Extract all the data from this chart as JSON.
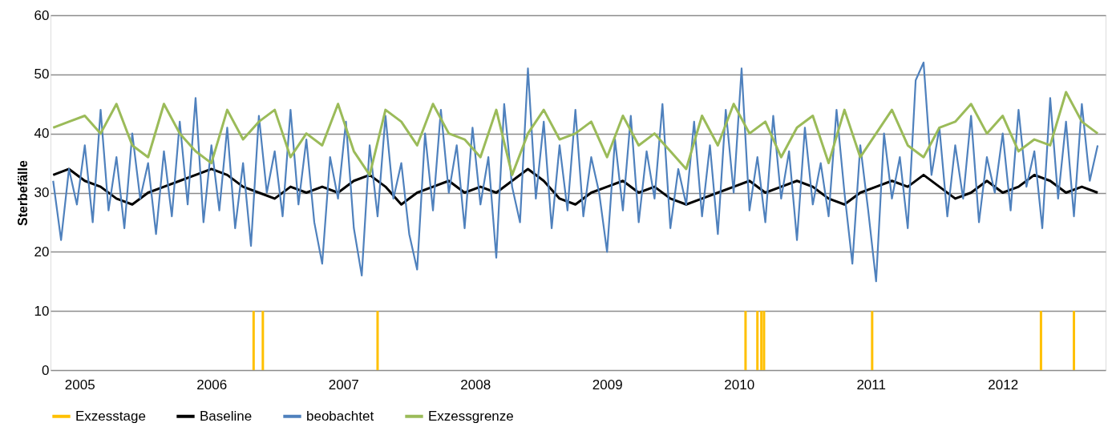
{
  "chart_data": {
    "type": "line",
    "ylabel": "Sterbefälle",
    "xlim": [
      2004.78,
      2012.78
    ],
    "xticks": [
      2005,
      2006,
      2007,
      2008,
      2009,
      2010,
      2011,
      2012
    ],
    "ylim": [
      0,
      60
    ],
    "yticks": [
      0,
      10,
      20,
      30,
      40,
      50,
      60
    ],
    "grid": "y",
    "legend": "bottom",
    "series": [
      {
        "name": "Exzesstage",
        "type": "bar",
        "color": "#ffc000",
        "x": [
          2006.32,
          2006.39,
          2007.26,
          2010.05,
          2010.14,
          2010.17,
          2010.19,
          2011.01,
          2012.29,
          2012.54
        ],
        "values": [
          10,
          10,
          10,
          10,
          10,
          10,
          10,
          10,
          10,
          10
        ]
      },
      {
        "name": "Baseline",
        "color": "#000000",
        "x": [
          2004.8,
          2004.92,
          2005.04,
          2005.16,
          2005.28,
          2005.4,
          2005.52,
          2005.64,
          2005.76,
          2005.88,
          2006.0,
          2006.12,
          2006.24,
          2006.36,
          2006.48,
          2006.6,
          2006.72,
          2006.84,
          2006.96,
          2007.08,
          2007.2,
          2007.32,
          2007.44,
          2007.56,
          2007.68,
          2007.8,
          2007.92,
          2008.04,
          2008.16,
          2008.28,
          2008.4,
          2008.52,
          2008.64,
          2008.76,
          2008.88,
          2009.0,
          2009.12,
          2009.24,
          2009.36,
          2009.48,
          2009.6,
          2009.72,
          2009.84,
          2009.96,
          2010.08,
          2010.2,
          2010.32,
          2010.44,
          2010.56,
          2010.68,
          2010.8,
          2010.92,
          2011.04,
          2011.16,
          2011.28,
          2011.4,
          2011.52,
          2011.64,
          2011.76,
          2011.88,
          2012.0,
          2012.12,
          2012.24,
          2012.36,
          2012.48,
          2012.6,
          2012.72
        ],
        "values": [
          33,
          34,
          32,
          31,
          29,
          28,
          30,
          31,
          32,
          33,
          34,
          33,
          31,
          30,
          29,
          31,
          30,
          31,
          30,
          32,
          33,
          31,
          28,
          30,
          31,
          32,
          30,
          31,
          30,
          32,
          34,
          32,
          29,
          28,
          30,
          31,
          32,
          30,
          31,
          29,
          28,
          29,
          30,
          31,
          32,
          30,
          31,
          32,
          31,
          29,
          28,
          30,
          31,
          32,
          31,
          33,
          31,
          29,
          30,
          32,
          30,
          31,
          33,
          32,
          30,
          31,
          30
        ]
      },
      {
        "name": "beobachtet",
        "color": "#4f81bd",
        "x": [
          2004.8,
          2004.86,
          2004.92,
          2004.98,
          2005.04,
          2005.1,
          2005.16,
          2005.22,
          2005.28,
          2005.34,
          2005.4,
          2005.46,
          2005.52,
          2005.58,
          2005.64,
          2005.7,
          2005.76,
          2005.82,
          2005.88,
          2005.94,
          2006.0,
          2006.06,
          2006.12,
          2006.18,
          2006.24,
          2006.3,
          2006.36,
          2006.42,
          2006.48,
          2006.54,
          2006.6,
          2006.66,
          2006.72,
          2006.78,
          2006.84,
          2006.9,
          2006.96,
          2007.02,
          2007.08,
          2007.14,
          2007.2,
          2007.26,
          2007.32,
          2007.38,
          2007.44,
          2007.5,
          2007.56,
          2007.62,
          2007.68,
          2007.74,
          2007.8,
          2007.86,
          2007.92,
          2007.98,
          2008.04,
          2008.1,
          2008.16,
          2008.22,
          2008.28,
          2008.34,
          2008.4,
          2008.46,
          2008.52,
          2008.58,
          2008.64,
          2008.7,
          2008.76,
          2008.82,
          2008.88,
          2008.94,
          2009.0,
          2009.06,
          2009.12,
          2009.18,
          2009.24,
          2009.3,
          2009.36,
          2009.42,
          2009.48,
          2009.54,
          2009.6,
          2009.66,
          2009.72,
          2009.78,
          2009.84,
          2009.9,
          2009.96,
          2010.02,
          2010.08,
          2010.14,
          2010.2,
          2010.26,
          2010.32,
          2010.38,
          2010.44,
          2010.5,
          2010.56,
          2010.62,
          2010.68,
          2010.74,
          2010.8,
          2010.86,
          2010.92,
          2010.98,
          2011.04,
          2011.1,
          2011.16,
          2011.22,
          2011.28,
          2011.34,
          2011.4,
          2011.46,
          2011.52,
          2011.58,
          2011.64,
          2011.7,
          2011.76,
          2011.82,
          2011.88,
          2011.94,
          2012.0,
          2012.06,
          2012.12,
          2012.18,
          2012.24,
          2012.3,
          2012.36,
          2012.42,
          2012.48,
          2012.54,
          2012.6,
          2012.66,
          2012.72
        ],
        "values": [
          32,
          22,
          34,
          28,
          38,
          25,
          44,
          27,
          36,
          24,
          40,
          29,
          35,
          23,
          37,
          26,
          42,
          28,
          46,
          25,
          38,
          27,
          41,
          24,
          35,
          21,
          43,
          30,
          37,
          26,
          44,
          28,
          39,
          25,
          18,
          36,
          29,
          42,
          24,
          16,
          38,
          26,
          43,
          29,
          35,
          23,
          17,
          40,
          27,
          44,
          30,
          38,
          24,
          41,
          28,
          36,
          19,
          45,
          31,
          25,
          51,
          29,
          42,
          24,
          38,
          27,
          44,
          26,
          36,
          30,
          20,
          39,
          27,
          43,
          25,
          37,
          29,
          45,
          24,
          34,
          28,
          42,
          26,
          38,
          23,
          44,
          30,
          51,
          27,
          36,
          25,
          43,
          29,
          37,
          22,
          41,
          28,
          35,
          26,
          44,
          30,
          18,
          38,
          27,
          15,
          40,
          29,
          36,
          24,
          49,
          52,
          33,
          41,
          26,
          38,
          29,
          43,
          25,
          36,
          30,
          40,
          27,
          44,
          31,
          37,
          24,
          46,
          29,
          42,
          26,
          45,
          32,
          38
        ]
      },
      {
        "name": "Exzessgrenze",
        "color": "#9bbb59",
        "x": [
          2004.8,
          2004.92,
          2005.04,
          2005.16,
          2005.28,
          2005.4,
          2005.52,
          2005.64,
          2005.76,
          2005.88,
          2006.0,
          2006.12,
          2006.24,
          2006.36,
          2006.48,
          2006.6,
          2006.72,
          2006.84,
          2006.96,
          2007.08,
          2007.2,
          2007.32,
          2007.44,
          2007.56,
          2007.68,
          2007.8,
          2007.92,
          2008.04,
          2008.16,
          2008.28,
          2008.4,
          2008.52,
          2008.64,
          2008.76,
          2008.88,
          2009.0,
          2009.12,
          2009.24,
          2009.36,
          2009.48,
          2009.6,
          2009.72,
          2009.84,
          2009.96,
          2010.08,
          2010.2,
          2010.32,
          2010.44,
          2010.56,
          2010.68,
          2010.8,
          2010.92,
          2011.04,
          2011.16,
          2011.28,
          2011.4,
          2011.52,
          2011.64,
          2011.76,
          2011.88,
          2012.0,
          2012.12,
          2012.24,
          2012.36,
          2012.48,
          2012.6,
          2012.72
        ],
        "values": [
          41,
          42,
          43,
          40,
          45,
          38,
          36,
          45,
          40,
          37,
          35,
          44,
          39,
          42,
          44,
          36,
          40,
          38,
          45,
          37,
          33,
          44,
          42,
          38,
          45,
          40,
          39,
          36,
          44,
          33,
          40,
          44,
          39,
          40,
          42,
          36,
          43,
          38,
          40,
          37,
          34,
          43,
          38,
          45,
          40,
          42,
          36,
          41,
          43,
          35,
          44,
          36,
          40,
          44,
          38,
          36,
          41,
          42,
          45,
          40,
          43,
          37,
          39,
          38,
          47,
          42,
          40
        ]
      }
    ]
  }
}
